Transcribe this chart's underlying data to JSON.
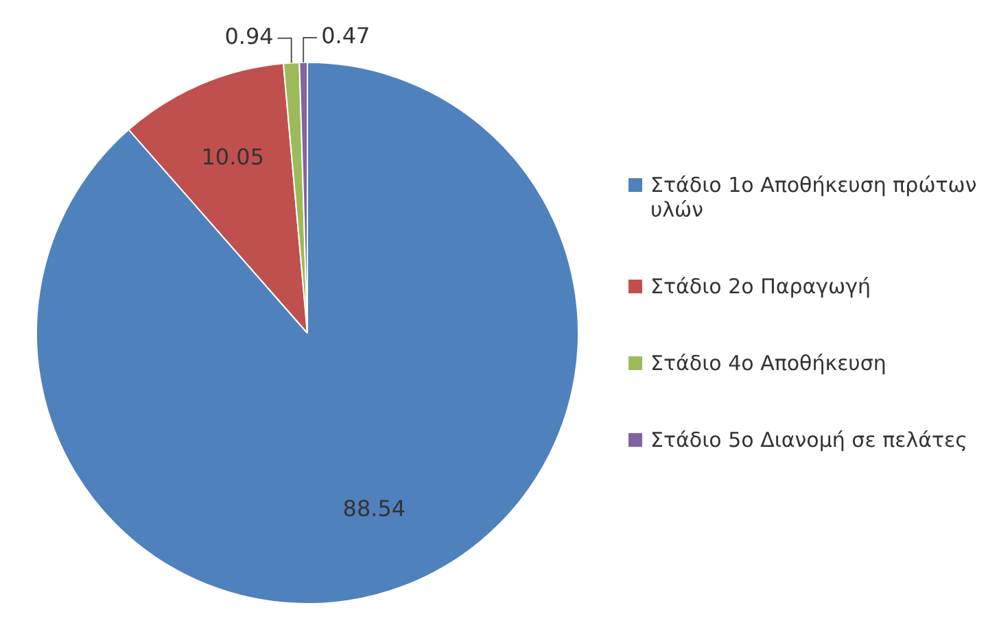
{
  "chart_data": {
    "type": "pie",
    "categories": [
      "Στάδιο 1ο Αποθήκευση πρώτων υλών",
      "Στάδιο 2ο Παραγωγή",
      "Στάδιο 4ο Αποθήκευση",
      "Στάδιο 5ο Διανομή σε πελάτες"
    ],
    "values": [
      88.54,
      10.05,
      0.94,
      0.47
    ],
    "colors": [
      "#4f81bd",
      "#c0504d",
      "#9bbb59",
      "#8064a2"
    ],
    "data_labels": true,
    "legend": "right"
  }
}
